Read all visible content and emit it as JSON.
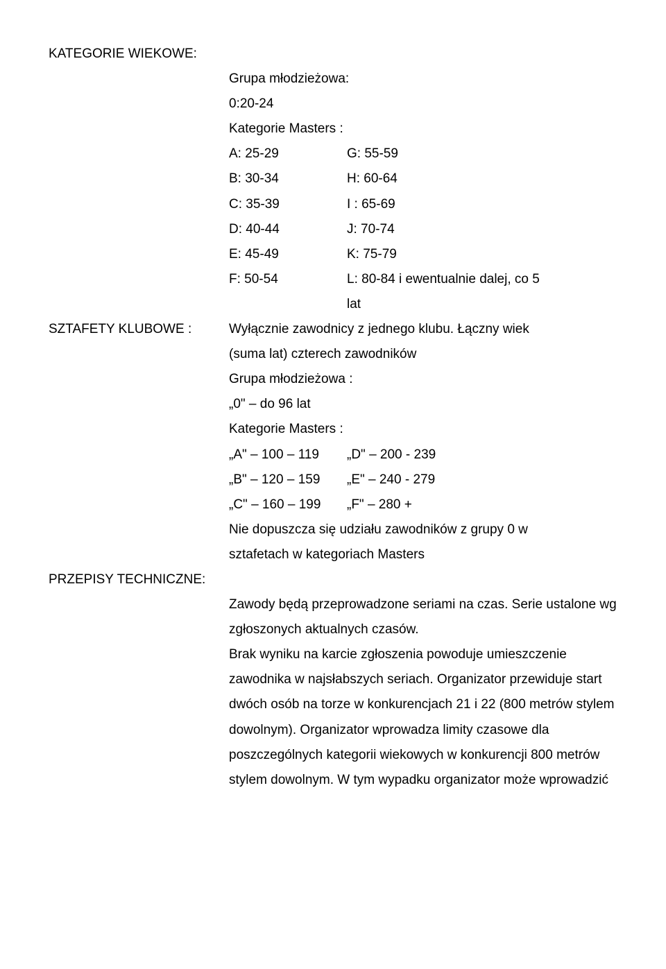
{
  "heading1": "KATEGORIE WIEKOWE:",
  "youth_group": "Grupa młodzieżowa:",
  "youth_range": "0:20-24",
  "masters_heading": "Kategorie Masters :",
  "pairs1": {
    "a_l": "A: 25-29",
    "a_r": "G: 55-59",
    "b_l": "B: 30-34",
    "b_r": "H: 60-64",
    "c_l": "C: 35-39",
    "c_r": "I : 65-69",
    "d_l": "D: 40-44",
    "d_r": "J: 70-74",
    "e_l": "E: 45-49",
    "e_r": "K: 75-79",
    "f_l": "F: 50-54",
    "f_r": "L: 80-84 i ewentualnie dalej, co 5"
  },
  "lat": "lat",
  "heading2": "SZTAFETY KLUBOWE :",
  "relay_line1": "Wyłącznie zawodnicy z jednego klubu. Łączny wiek",
  "relay_line2": "(suma lat) czterech zawodników",
  "relay_youth": "Grupa młodzieżowa :",
  "relay_youth_range": "„0\" – do 96  lat",
  "relay_masters_heading": "Kategorie Masters :",
  "pairs2": {
    "a_l": "„A\" – 100 – 119",
    "a_r": "„D\" – 200 - 239",
    "b_l": "„B\" – 120 – 159",
    "b_r": "„E\" – 240 - 279",
    "c_l": "„C\" – 160 – 199",
    "c_r": "„F\" – 280 +"
  },
  "not_allowed_1": "Nie dopuszcza się udziału zawodników z grupy 0 w",
  "not_allowed_2": "sztafetach w kategoriach Masters",
  "heading3": "PRZEPISY TECHNICZNE:",
  "tech": {
    "p1": "Zawody będą przeprowadzone seriami na czas. Serie ustalone wg",
    "p2": "zgłoszonych aktualnych czasów.",
    "p3": "Brak wyniku na karcie zgłoszenia powoduje umieszczenie",
    "p4": "zawodnika w najsłabszych seriach. Organizator przewiduje start",
    "p5": "dwóch osób na torze w konkurencjach 21 i 22 (800 metrów stylem",
    "p6": "dowolnym). Organizator wprowadza limity czasowe dla",
    "p7": "poszczególnych kategorii wiekowych w konkurencji 800 metrów",
    "p8": "stylem dowolnym. W tym wypadku organizator może wprowadzić"
  }
}
